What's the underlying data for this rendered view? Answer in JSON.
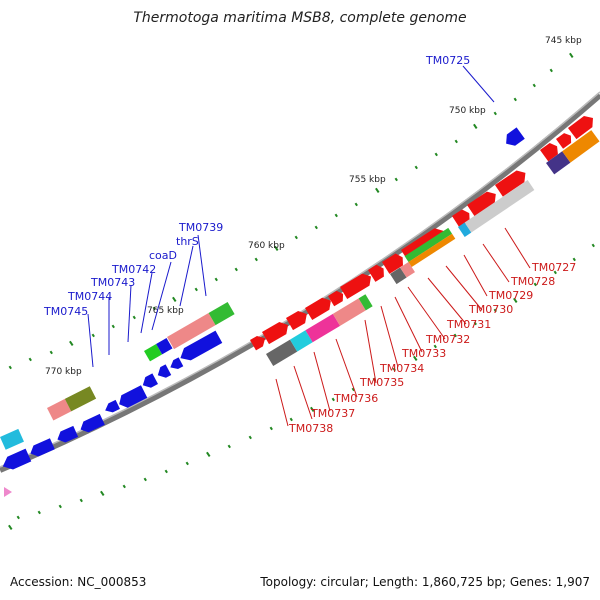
{
  "title": "Thermotoga maritima MSB8, complete genome",
  "footer": {
    "accession": "Accession: NC_000853",
    "info": "Topology: circular; Length: 1,860,725 bp; Genes: 1,907"
  },
  "ticks": [
    "745 kbp",
    "750 kbp",
    "755 kbp",
    "760 kbp",
    "765 kbp",
    "770 kbp"
  ],
  "labels_left": [
    "TM0725",
    "TM0739",
    "thrS",
    "coaD",
    "TM0742",
    "TM0743",
    "TM0744",
    "TM0745"
  ],
  "labels_right": [
    "TM0727",
    "TM0728",
    "TM0729",
    "TM0730",
    "TM0731",
    "TM0732",
    "TM0733",
    "TM0734",
    "TM0735",
    "TM0736",
    "TM0737",
    "TM0738"
  ],
  "colors": {
    "forward_strand": "#ee1111",
    "reverse_strand": "#1111dd",
    "backbone": "#888888",
    "tick_marks": "#228822",
    "label_blue": "#1a1acc",
    "label_red": "#cc1a1a"
  }
}
